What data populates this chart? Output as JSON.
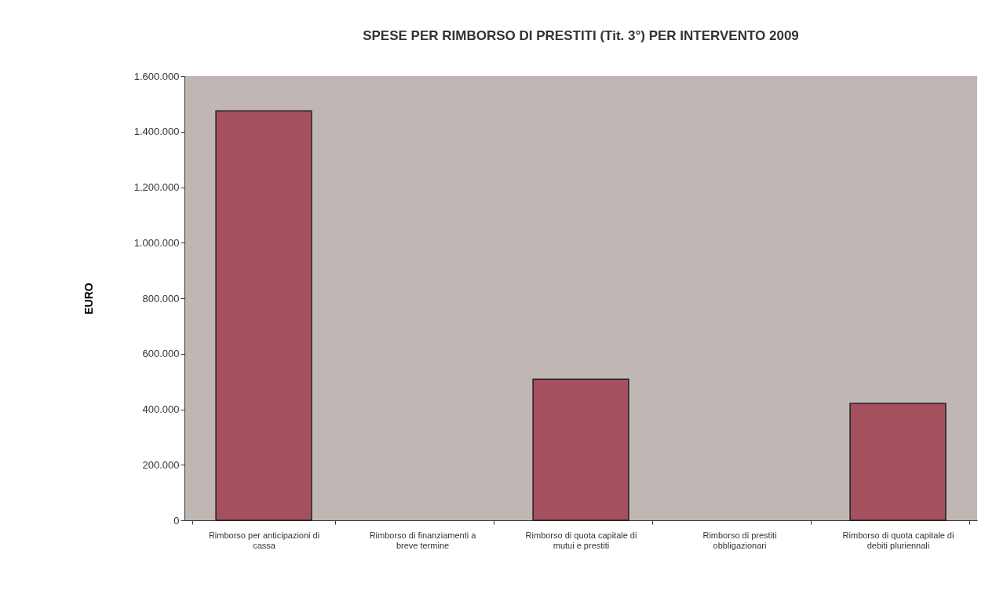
{
  "chart_data": {
    "type": "bar",
    "title": "SPESE PER RIMBORSO DI PRESTITI (Tit. 3°) PER INTERVENTO 2009",
    "ylabel": "EURO",
    "categories": [
      "Rimborso per anticipazioni di cassa",
      "Rimborso di finanziamenti a breve termine",
      "Rimborso di quota capitale di mutui e prestiti",
      "Rimborso di prestiti obbligazionari",
      "Rimborso di quota capitale di debiti pluriennali"
    ],
    "values": [
      1475000,
      0,
      508000,
      0,
      421000
    ],
    "color": "#a5505f",
    "ylim": [
      0,
      1600000
    ],
    "yticks": [
      0,
      {
        "value": 200000,
        "label": "200.000"
      },
      {
        "value": 400000,
        "label": "400.000"
      },
      {
        "value": 600000,
        "label": "600.000"
      },
      {
        "value": 800000,
        "label": "800.000"
      },
      {
        "value": 1000000,
        "label": "1.000.000"
      },
      {
        "value": 1200000,
        "label": "1.200.000"
      },
      {
        "value": 1400000,
        "label": "1.400.000"
      },
      {
        "value": 1600000,
        "label": "1.600.000"
      }
    ],
    "grid": false
  }
}
